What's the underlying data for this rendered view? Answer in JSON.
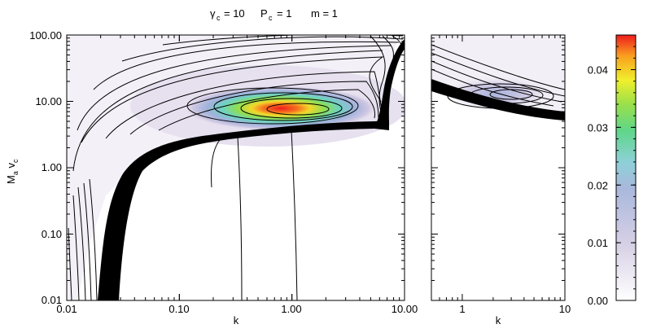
{
  "title": {
    "gamma_symbol": "γ",
    "gamma_sub": "c",
    "gamma_value": "= 10",
    "p_symbol": "P",
    "p_sub": "c",
    "p_value": "= 1",
    "m_text": "m = 1"
  },
  "chart_data": [
    {
      "type": "heatmap",
      "panel": "left",
      "xlabel": "k",
      "ylabel": "M a v c",
      "xscale": "log",
      "yscale": "log",
      "xlim": [
        0.01,
        10.0
      ],
      "ylim": [
        0.01,
        100.0
      ],
      "x_tick_labels": [
        "0.01",
        "0.10",
        "1.00",
        "10.00"
      ],
      "y_tick_labels": [
        "0.01",
        "0.10",
        "1.00",
        "10.00",
        "100.00"
      ],
      "peak": {
        "k": 1.3,
        "M_a_v_c": 6.5,
        "value": 0.045
      },
      "ridge_levels": [
        0.005,
        0.01,
        0.015,
        0.02,
        0.025,
        0.03,
        0.035,
        0.04
      ]
    },
    {
      "type": "heatmap",
      "panel": "right",
      "xlabel": "k",
      "xscale": "log",
      "yscale": "log",
      "xlim": [
        0.5,
        10
      ],
      "ylim": [
        0.01,
        100.0
      ],
      "x_tick_labels": [
        "1",
        "10"
      ],
      "peak": {
        "k": 2.5,
        "M_a_v_c": 12,
        "value": 0.018
      }
    }
  ],
  "colorbar": {
    "ticks": [
      "0.00",
      "0.01",
      "0.02",
      "0.03",
      "0.04"
    ],
    "range": [
      0.0,
      0.046
    ]
  }
}
